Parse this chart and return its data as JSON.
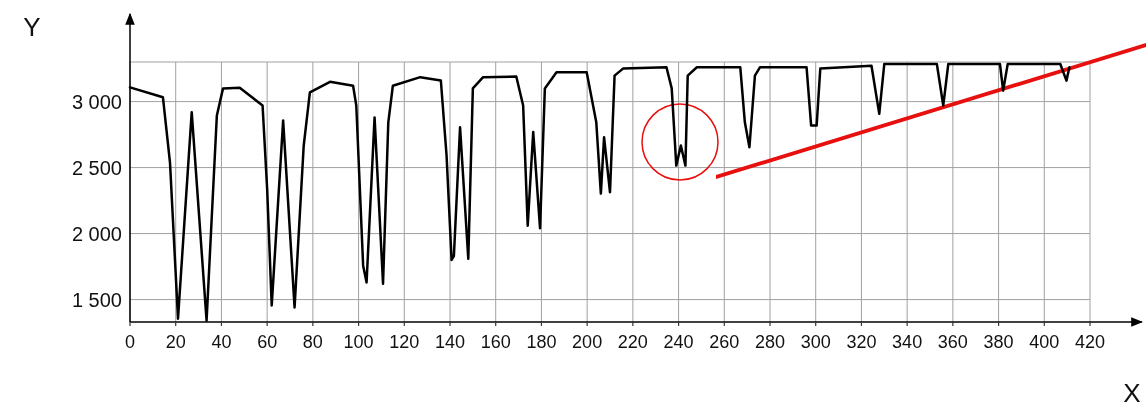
{
  "chart_data": {
    "type": "line",
    "xlabel": "X",
    "ylabel": "Y",
    "xlim": [
      0,
      420
    ],
    "xticks": [
      0,
      20,
      40,
      60,
      80,
      100,
      120,
      140,
      160,
      180,
      200,
      220,
      240,
      260,
      280,
      300,
      320,
      340,
      360,
      380,
      400,
      420
    ],
    "ylim": [
      1330,
      3300
    ],
    "yticks": [
      {
        "value": 1500,
        "label": "1 500"
      },
      {
        "value": 2000,
        "label": "2 000"
      },
      {
        "value": 2500,
        "label": "2 500"
      },
      {
        "value": 3000,
        "label": "3 000"
      },
      {
        "value": 3300,
        "label": null
      }
    ],
    "grid": true,
    "marker": "none",
    "line_style": "solid",
    "series": [
      {
        "color": "#000000",
        "x": [
          0,
          14.4,
          17.5,
          21,
          27,
          33.5,
          38,
          40.7,
          48,
          58,
          60,
          62,
          67,
          72,
          76,
          78.7,
          87.5,
          97.6,
          99,
          102,
          103.5,
          107,
          110.7,
          113,
          115,
          127,
          136,
          138.5,
          140.7,
          141.7,
          144.4,
          148,
          150,
          154.5,
          169,
          172,
          174,
          176.4,
          179.4,
          181.5,
          186.6,
          199.8,
          204,
          206,
          207.4,
          210,
          212,
          215.7,
          234.7,
          237,
          239,
          241,
          243,
          244,
          248,
          267,
          269,
          271,
          273.4,
          275.6,
          296,
          298,
          300.4,
          302,
          324.4,
          327.8,
          330,
          353,
          355.8,
          358,
          380.6,
          382,
          384,
          407,
          409.7,
          411
        ],
        "values": [
          3108,
          3033,
          2538,
          1355,
          2920,
          1340,
          2895,
          3100,
          3105,
          2970,
          2340,
          1455,
          2856,
          1440,
          2667,
          3070,
          3150,
          3120,
          2970,
          1757,
          1630,
          2880,
          1620,
          2840,
          3120,
          3185,
          3160,
          2590,
          1800,
          1830,
          2805,
          1810,
          3100,
          3185,
          3190,
          2970,
          2060,
          2770,
          2040,
          3100,
          3222,
          3222,
          2843,
          2303,
          2730,
          2313,
          3197,
          3250,
          3260,
          3100,
          2515,
          2667,
          2515,
          3197,
          3260,
          3260,
          2843,
          2654,
          3197,
          3260,
          3260,
          2818,
          2818,
          3250,
          3272,
          2907,
          3285,
          3285,
          2970,
          3285,
          3285,
          3083,
          3285,
          3285,
          3159,
          3260
        ]
      }
    ]
  }
}
